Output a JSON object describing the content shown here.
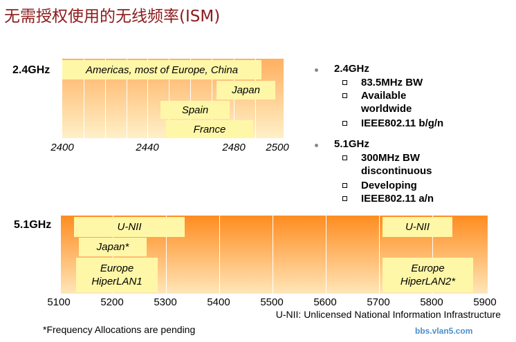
{
  "title": "无需授权使用的无线频率(ISM)",
  "band24": {
    "label": "2.4GHz",
    "allocations": [
      "Americas, most of Europe, China",
      "Japan",
      "Spain",
      "France"
    ],
    "ticks": [
      "2400",
      "2440",
      "2480",
      "2500"
    ]
  },
  "band51": {
    "label": "5.1GHz",
    "allocations": [
      "U-NII",
      "Japan*",
      "Europe HiperLAN1",
      "U-NII",
      "Europe HiperLAN2*"
    ],
    "ticks": [
      "5100",
      "5200",
      "5300",
      "5400",
      "5500",
      "5600",
      "5700",
      "5800",
      "5900"
    ]
  },
  "bullets": [
    {
      "title": "2.4GHz",
      "items": [
        "83.5MHz BW",
        "Available worldwide",
        "IEEE802.11 b/g/n"
      ]
    },
    {
      "title": "5.1GHz",
      "items": [
        "300MHz BW discontinuous",
        "Developing",
        "IEEE802.11 a/n"
      ]
    }
  ],
  "unii_note": "U-NII: Unlicensed National Information Infrastructure",
  "footnote": "*Frequency Allocations are pending",
  "watermark": "bbs.vlan5.com"
}
